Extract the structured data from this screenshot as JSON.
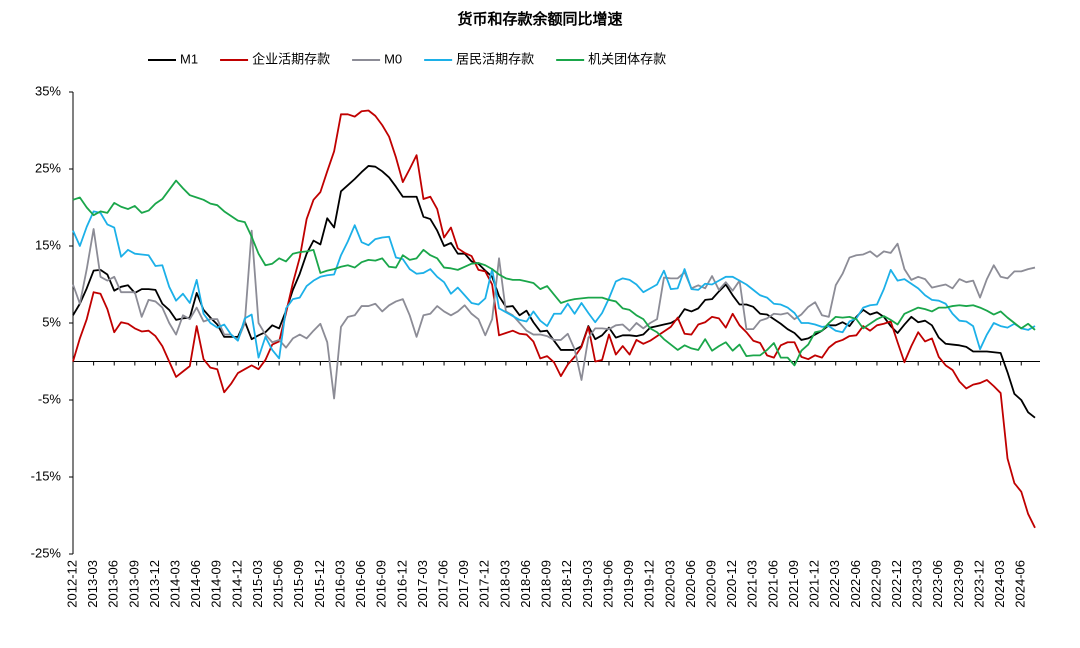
{
  "chart_data": {
    "type": "line",
    "title": "货币和存款余额同比增速",
    "categories": [
      "2012-12",
      null,
      null,
      "2013-03",
      null,
      null,
      "2013-06",
      null,
      null,
      "2013-09",
      null,
      null,
      "2013-12",
      null,
      null,
      "2014-03",
      null,
      null,
      "2014-06",
      null,
      null,
      "2014-09",
      null,
      null,
      "2014-12",
      null,
      null,
      "2015-03",
      null,
      null,
      "2015-06",
      null,
      null,
      "2015-09",
      null,
      null,
      "2015-12",
      null,
      null,
      "2016-03",
      null,
      null,
      "2016-06",
      null,
      null,
      "2016-09",
      null,
      null,
      "2016-12",
      null,
      null,
      "2017-03",
      null,
      null,
      "2017-06",
      null,
      null,
      "2017-09",
      null,
      null,
      "2017-12",
      null,
      null,
      "2018-03",
      null,
      null,
      "2018-06",
      null,
      null,
      "2018-09",
      null,
      null,
      "2018-12",
      null,
      null,
      "2019-03",
      null,
      null,
      "2019-06",
      null,
      null,
      "2019-09",
      null,
      null,
      "2019-12",
      null,
      null,
      "2020-03",
      null,
      null,
      "2020-06",
      null,
      null,
      "2020-09",
      null,
      null,
      "2020-12",
      null,
      null,
      "2021-03",
      null,
      null,
      "2021-06",
      null,
      null,
      "2021-09",
      null,
      null,
      "2021-12",
      null,
      null,
      "2022-03",
      null,
      null,
      "2022-06",
      null,
      null,
      "2022-09",
      null,
      null,
      "2022-12",
      null,
      null,
      "2023-03",
      null,
      null,
      "2023-06",
      null,
      null,
      "2023-09",
      null,
      null,
      "2023-12",
      null,
      null,
      "2024-03",
      null,
      null,
      "2024-06",
      null,
      null
    ],
    "series": [
      {
        "name": "M1",
        "color": "#000000",
        "values": [
          6,
          7.5,
          9.5,
          11.8,
          11.9,
          11.3,
          9.2,
          9.7,
          9.9,
          8.9,
          9.4,
          9.4,
          9.3,
          7.5,
          6.7,
          5.4,
          5.6,
          5.7,
          8.9,
          6.7,
          5.7,
          4.8,
          3.2,
          3.2,
          3.2,
          5.2,
          2.9,
          3.4,
          3.8,
          4.7,
          4.3,
          6.6,
          9.3,
          11.4,
          14.0,
          15.7,
          15.2,
          18.6,
          17.4,
          22.1,
          22.9,
          23.7,
          24.6,
          25.4,
          25.3,
          24.7,
          23.9,
          22.7,
          21.4,
          21.4,
          21.4,
          18.8,
          18.5,
          17.0,
          15.0,
          15.4,
          14.0,
          14.0,
          13.0,
          12.7,
          11.8,
          11.0,
          8.5,
          7.1,
          7.2,
          6.0,
          6.6,
          5.1,
          3.9,
          4.0,
          2.7,
          1.5,
          1.5,
          1.5,
          2.0,
          4.6,
          2.9,
          3.4,
          4.4,
          3.1,
          3.4,
          3.4,
          3.3,
          3.5,
          4.4,
          4.6,
          4.8,
          5.0,
          5.5,
          6.8,
          6.5,
          6.9,
          8.0,
          8.1,
          9.1,
          10.0,
          8.6,
          7.4,
          7.4,
          7.1,
          6.2,
          6.1,
          5.5,
          4.9,
          4.2,
          3.7,
          2.8,
          3.0,
          3.5,
          4.0,
          4.7,
          4.7,
          5.1,
          4.6,
          5.8,
          6.7,
          6.1,
          6.4,
          5.8,
          4.6,
          3.7,
          4.8,
          5.8,
          5.1,
          5.3,
          4.7,
          3.1,
          2.3,
          2.2,
          2.1,
          1.9,
          1.3,
          1.3,
          1.3,
          1.2,
          1.1,
          -1.4,
          -4.2,
          -5.0,
          -6.6,
          -7.3
        ]
      },
      {
        "name": "企业活期存款",
        "color": "#c00000",
        "values": [
          0,
          3,
          5.5,
          9.0,
          8.8,
          6.8,
          3.8,
          5.1,
          4.9,
          4.3,
          3.9,
          4.0,
          3.3,
          2.0,
          0.0,
          -2.0,
          -1.3,
          -0.6,
          4.6,
          0.3,
          -0.8,
          -1.0,
          -4.0,
          -2.9,
          -1.5,
          -1.0,
          -0.5,
          -1.0,
          0.2,
          2.2,
          2.6,
          6.3,
          10.2,
          13.5,
          18.5,
          21.0,
          22.0,
          24.7,
          27.3,
          32.1,
          32.1,
          31.8,
          32.5,
          32.6,
          31.9,
          30.7,
          29.2,
          26.5,
          23.3,
          25.0,
          26.8,
          21.1,
          21.4,
          19.8,
          16.1,
          17.4,
          14.7,
          14.1,
          13.7,
          11.9,
          11.7,
          10.0,
          3.4,
          3.7,
          4.0,
          3.6,
          3.5,
          2.6,
          0.4,
          0.7,
          -0.1,
          -1.9,
          -0.4,
          0.6,
          1.9,
          4.5,
          0.0,
          0.2,
          3.5,
          0.9,
          2.0,
          0.9,
          2.8,
          2.3,
          2.7,
          3.3,
          3.9,
          4.5,
          5.7,
          3.6,
          3.5,
          4.8,
          5.1,
          5.8,
          5.6,
          4.4,
          6.2,
          4.7,
          3.8,
          2.7,
          2.4,
          0.8,
          0.5,
          2.1,
          2.5,
          2.5,
          0.6,
          0.3,
          0.8,
          0.5,
          1.8,
          2.5,
          2.8,
          3.3,
          3.4,
          4.6,
          4.0,
          4.7,
          4.9,
          5.2,
          2.5,
          -0.1,
          2.0,
          3.8,
          2.6,
          3.0,
          0.6,
          -0.5,
          -1.1,
          -2.6,
          -3.5,
          -3.0,
          -2.8,
          -2.4,
          -3.2,
          -4.1,
          -12.6,
          -15.8,
          -16.9,
          -19.8,
          -21.6
        ]
      },
      {
        "name": "M0",
        "color": "#8c8c96",
        "values": [
          10,
          7.5,
          12,
          17.2,
          11,
          10.5,
          11,
          9.0,
          9.0,
          9.0,
          5.8,
          8.0,
          7.8,
          7.0,
          5.0,
          3.5,
          6.0,
          5.5,
          7.0,
          5.2,
          5.5,
          5.5,
          3.5,
          3.5,
          2.8,
          5.0,
          17.0,
          5.0,
          3.5,
          2.5,
          2.8,
          1.8,
          3.0,
          3.5,
          3.0,
          4.0,
          4.9,
          2.5,
          -4.8,
          4.5,
          5.8,
          6.0,
          7.2,
          7.2,
          7.5,
          6.5,
          7.3,
          7.8,
          8.1,
          6.0,
          3.2,
          6.0,
          6.2,
          7.2,
          6.5,
          6.0,
          6.5,
          7.3,
          6.2,
          5.5,
          3.4,
          5.5,
          13.4,
          6.5,
          6.0,
          5.0,
          4.0,
          3.5,
          3.5,
          3.3,
          2.8,
          2.8,
          3.6,
          1.6,
          -2.4,
          3.1,
          4.3,
          4.3,
          4.2,
          4.7,
          4.8,
          4.0,
          5.0,
          4.3,
          5.0,
          5.5,
          10.9,
          10.8,
          10.8,
          11.6,
          9.5,
          9.9,
          9.5,
          11.1,
          9.3,
          10.3,
          9.2,
          10.5,
          4.2,
          4.2,
          5.3,
          5.6,
          6.2,
          6.1,
          6.3,
          5.5,
          6.1,
          7.1,
          7.7,
          6.0,
          5.8,
          9.9,
          11.4,
          13.5,
          13.8,
          13.9,
          14.3,
          13.6,
          14.3,
          14.1,
          15.3,
          12.0,
          10.6,
          11.0,
          10.7,
          9.6,
          9.8,
          10.0,
          9.5,
          10.7,
          10.3,
          10.5,
          8.3,
          10.7,
          12.5,
          11.0,
          10.8,
          11.7,
          11.7,
          12.0,
          12.2
        ]
      },
      {
        "name": "居民活期存款",
        "color": "#1cb0e8",
        "values": [
          17,
          15.0,
          17.5,
          19.5,
          19.3,
          17.8,
          17.4,
          13.6,
          14.5,
          14.0,
          13.9,
          13.8,
          12.4,
          12.5,
          9.7,
          7.9,
          8.8,
          7.6,
          10.6,
          6.2,
          5.0,
          4.4,
          4.8,
          3.5,
          2.7,
          5.6,
          6.1,
          0.5,
          3.2,
          1.5,
          0.4,
          6.9,
          8.1,
          8.3,
          9.8,
          10.5,
          11.0,
          11.2,
          11.3,
          13.8,
          15.6,
          17.7,
          15.5,
          15.1,
          15.9,
          16.1,
          16.2,
          13.5,
          13.3,
          12.0,
          11.4,
          11.5,
          12.0,
          11.0,
          10.3,
          8.8,
          9.6,
          8.6,
          7.6,
          7.4,
          8.2,
          12.0,
          6.9,
          6.4,
          5.9,
          5.4,
          5.2,
          6.5,
          5.3,
          4.6,
          6.2,
          6.2,
          7.5,
          6.2,
          7.6,
          6.3,
          5.1,
          6.3,
          8.2,
          10.4,
          10.8,
          10.6,
          10.0,
          9.0,
          9.5,
          10.0,
          11.8,
          9.4,
          9.5,
          12.0,
          9.4,
          9.3,
          10.1,
          10.0,
          10.5,
          11.0,
          11.0,
          10.5,
          10.0,
          9.3,
          8.6,
          8.3,
          7.5,
          7.4,
          7.0,
          6.3,
          5.0,
          5.0,
          4.8,
          4.5,
          4.6,
          4.0,
          3.8,
          5.2,
          5.6,
          7.0,
          7.3,
          7.4,
          9.4,
          11.9,
          10.5,
          10.7,
          10.1,
          9.5,
          8.6,
          8.0,
          7.9,
          7.5,
          6.2,
          5.3,
          5.2,
          4.6,
          1.6,
          3.5,
          5.0,
          4.6,
          4.4,
          4.9,
          4.3,
          4.1,
          4.6
        ]
      },
      {
        "name": "机关团体存款",
        "color": "#1aa64a",
        "values": [
          21,
          21.3,
          20.0,
          19.0,
          19.5,
          19.3,
          20.6,
          20.1,
          19.8,
          20.2,
          19.3,
          19.6,
          20.5,
          21.1,
          22.3,
          23.5,
          22.5,
          21.6,
          21.3,
          21.0,
          20.5,
          20.3,
          19.5,
          18.9,
          18.3,
          18.1,
          16.2,
          14.0,
          12.5,
          12.7,
          13.4,
          13.0,
          14.0,
          14.2,
          14.3,
          14.5,
          11.5,
          11.8,
          12.0,
          12.3,
          12.5,
          12.2,
          12.9,
          13.2,
          13.1,
          13.4,
          12.3,
          12.2,
          13.8,
          13.2,
          13.4,
          14.5,
          13.8,
          13.4,
          12.2,
          12.1,
          11.9,
          12.3,
          12.7,
          12.8,
          12.5,
          12.0,
          11.3,
          10.8,
          10.6,
          10.6,
          10.4,
          10.2,
          9.4,
          9.8,
          8.7,
          7.6,
          7.9,
          8.1,
          8.2,
          8.3,
          8.3,
          8.3,
          8.0,
          7.8,
          6.9,
          6.7,
          6.0,
          5.5,
          4.3,
          3.8,
          2.9,
          2.2,
          1.5,
          2.1,
          1.7,
          1.5,
          2.9,
          1.4,
          2.0,
          2.5,
          1.4,
          2.2,
          0.7,
          0.8,
          0.8,
          1.5,
          2.4,
          0.5,
          0.5,
          -0.5,
          1.4,
          2.2,
          3.8,
          4.0,
          5.0,
          5.8,
          5.7,
          5.8,
          5.5,
          4.3,
          4.9,
          5.5,
          5.9,
          5.4,
          4.8,
          6.2,
          6.6,
          7.0,
          6.8,
          6.5,
          7.0,
          7.0,
          7.2,
          7.3,
          7.2,
          7.3,
          7.0,
          6.6,
          6.1,
          6.5,
          5.7,
          5.0,
          4.3,
          4.9,
          4.1
        ]
      }
    ],
    "ylim": [
      -25,
      35
    ],
    "yticks": [
      {
        "value": 35,
        "label": "35%"
      },
      {
        "value": 25,
        "label": "25%"
      },
      {
        "value": 15,
        "label": "15%"
      },
      {
        "value": 5,
        "label": "5%"
      },
      {
        "value": -5,
        "label": "-5%"
      },
      {
        "value": -15,
        "label": "-15%"
      },
      {
        "value": -25,
        "label": "-25%"
      }
    ],
    "grid": false,
    "legend": "top"
  }
}
